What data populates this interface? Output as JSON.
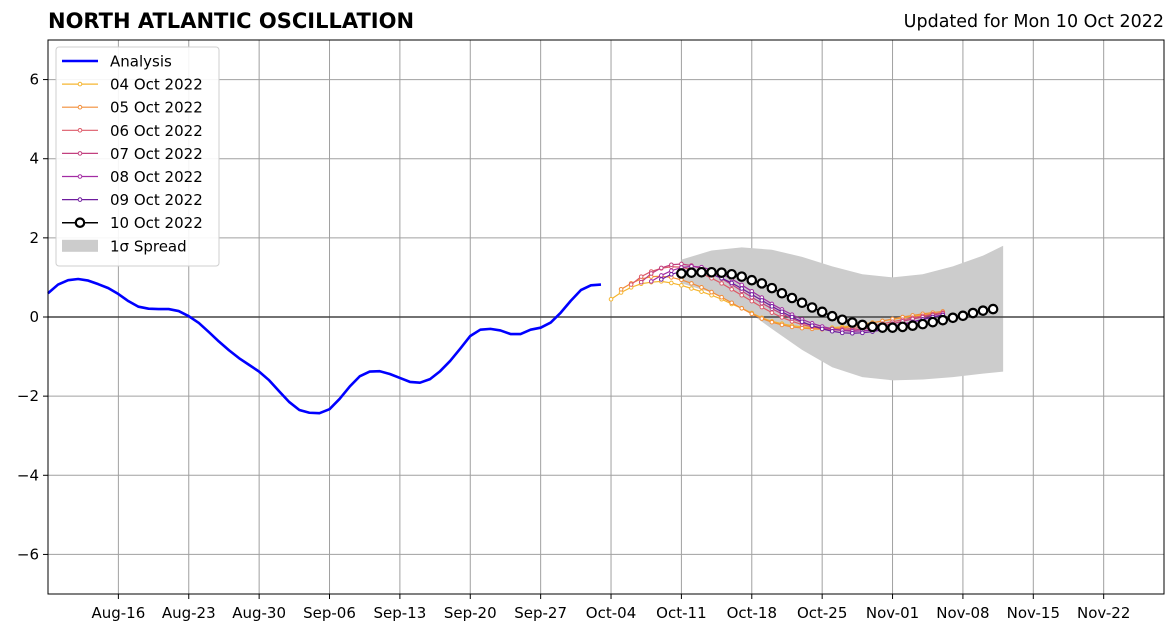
{
  "header": {
    "title": "NORTH ATLANTIC OSCILLATION",
    "subtitle": "Updated for Mon 10 Oct 2022"
  },
  "chart_data": {
    "type": "line",
    "title": "NORTH ATLANTIC OSCILLATION",
    "subtitle": "Updated for Mon 10 Oct 2022",
    "xlabel": "",
    "ylabel": "",
    "ylim": [
      -7,
      7
    ],
    "yticks": [
      -6,
      -4,
      -2,
      0,
      2,
      4,
      6
    ],
    "ytick_labels": [
      "−6",
      "−4",
      "−2",
      "0",
      "2",
      "4",
      "6"
    ],
    "xlim": [
      "2022-08-09",
      "2022-11-28"
    ],
    "xticks": [
      "2022-08-16",
      "2022-08-23",
      "2022-08-30",
      "2022-09-06",
      "2022-09-13",
      "2022-09-20",
      "2022-09-27",
      "2022-10-04",
      "2022-10-11",
      "2022-10-18",
      "2022-10-25",
      "2022-11-01",
      "2022-11-08",
      "2022-11-15",
      "2022-11-22"
    ],
    "xtick_labels": [
      "Aug-16",
      "Aug-23",
      "Aug-30",
      "Sep-06",
      "Sep-13",
      "Sep-20",
      "Sep-27",
      "Oct-04",
      "Oct-11",
      "Oct-18",
      "Oct-25",
      "Nov-01",
      "Nov-08",
      "Nov-15",
      "Nov-22"
    ],
    "grid": true,
    "legend_position": "top-left",
    "legend": [
      "Analysis",
      "04 Oct 2022",
      "05 Oct 2022",
      "06 Oct 2022",
      "07 Oct 2022",
      "08 Oct 2022",
      "09 Oct 2022",
      "10 Oct 2022",
      "1σ Spread"
    ],
    "analysis": {
      "name": "Analysis",
      "color": "#0000ff",
      "start": "2022-08-09",
      "values": [
        0.6,
        0.82,
        0.93,
        0.96,
        0.92,
        0.83,
        0.73,
        0.58,
        0.4,
        0.26,
        0.21,
        0.2,
        0.2,
        0.15,
        0.02,
        -0.15,
        -0.38,
        -0.62,
        -0.84,
        -1.04,
        -1.21,
        -1.38,
        -1.6,
        -1.88,
        -2.15,
        -2.35,
        -2.42,
        -2.43,
        -2.33,
        -2.07,
        -1.76,
        -1.5,
        -1.38,
        -1.37,
        -1.44,
        -1.54,
        -1.64,
        -1.66,
        -1.57,
        -1.37,
        -1.11,
        -0.8,
        -0.48,
        -0.32,
        -0.3,
        -0.34,
        -0.43,
        -0.43,
        -0.32,
        -0.27,
        -0.14,
        0.11,
        0.41,
        0.68,
        0.8,
        0.82
      ]
    },
    "forecasts": [
      {
        "name": "04 Oct 2022",
        "color": "#f5b530",
        "start": "2022-10-04",
        "values": [
          0.45,
          0.62,
          0.75,
          0.84,
          0.88,
          0.9,
          0.86,
          0.8,
          0.72,
          0.64,
          0.55,
          0.45,
          0.33,
          0.22,
          0.1,
          -0.02,
          -0.11,
          -0.17,
          -0.22,
          -0.25,
          -0.27,
          -0.28,
          -0.27,
          -0.25,
          -0.22,
          -0.18,
          -0.14,
          -0.1,
          -0.06,
          -0.02,
          0.02,
          0.05,
          0.08,
          0.1
        ]
      },
      {
        "name": "05 Oct 2022",
        "color": "#f28d38",
        "start": "2022-10-05",
        "values": [
          0.7,
          0.85,
          0.96,
          1.02,
          1.03,
          1.0,
          0.94,
          0.85,
          0.75,
          0.63,
          0.5,
          0.36,
          0.22,
          0.08,
          -0.04,
          -0.13,
          -0.2,
          -0.25,
          -0.28,
          -0.3,
          -0.31,
          -0.3,
          -0.28,
          -0.24,
          -0.2,
          -0.15,
          -0.1,
          -0.05,
          0.0,
          0.04,
          0.08,
          0.11,
          0.14
        ]
      },
      {
        "name": "06 Oct 2022",
        "color": "#dd5a68",
        "start": "2022-10-06",
        "values": [
          0.82,
          1.02,
          1.15,
          1.23,
          1.27,
          1.26,
          1.2,
          1.1,
          0.98,
          0.85,
          0.7,
          0.55,
          0.4,
          0.25,
          0.11,
          -0.01,
          -0.11,
          -0.19,
          -0.25,
          -0.29,
          -0.31,
          -0.31,
          -0.29,
          -0.26,
          -0.22,
          -0.17,
          -0.12,
          -0.07,
          -0.02,
          0.03,
          0.07,
          0.11
        ]
      },
      {
        "name": "07 Oct 2022",
        "color": "#c2407f",
        "start": "2022-10-07",
        "values": [
          0.88,
          1.1,
          1.24,
          1.32,
          1.34,
          1.3,
          1.22,
          1.11,
          0.97,
          0.82,
          0.66,
          0.5,
          0.35,
          0.21,
          0.08,
          -0.04,
          -0.14,
          -0.22,
          -0.28,
          -0.32,
          -0.34,
          -0.33,
          -0.31,
          -0.27,
          -0.22,
          -0.17,
          -0.11,
          -0.05,
          0.0,
          0.05,
          0.09
        ]
      },
      {
        "name": "08 Oct 2022",
        "color": "#a22ca3",
        "start": "2022-10-08",
        "values": [
          0.9,
          1.05,
          1.17,
          1.25,
          1.28,
          1.26,
          1.19,
          1.09,
          0.96,
          0.81,
          0.65,
          0.49,
          0.33,
          0.19,
          0.06,
          -0.06,
          -0.16,
          -0.24,
          -0.3,
          -0.34,
          -0.36,
          -0.35,
          -0.33,
          -0.29,
          -0.24,
          -0.18,
          -0.12,
          -0.06,
          0.0,
          0.05
        ]
      },
      {
        "name": "09 Oct 2022",
        "color": "#6e1c9e",
        "start": "2022-10-09",
        "values": [
          0.95,
          1.08,
          1.15,
          1.17,
          1.15,
          1.08,
          0.98,
          0.86,
          0.72,
          0.57,
          0.42,
          0.27,
          0.13,
          0.0,
          -0.12,
          -0.22,
          -0.3,
          -0.36,
          -0.4,
          -0.41,
          -0.4,
          -0.37,
          -0.32,
          -0.26,
          -0.2,
          -0.13,
          -0.06,
          0.0,
          0.05
        ]
      },
      {
        "name": "10 Oct 2022",
        "color": "#000000",
        "start": "2022-10-11",
        "values": [
          1.1,
          1.12,
          1.13,
          1.13,
          1.12,
          1.08,
          1.02,
          0.93,
          0.85,
          0.73,
          0.6,
          0.48,
          0.36,
          0.24,
          0.13,
          0.02,
          -0.07,
          -0.14,
          -0.2,
          -0.25,
          -0.27,
          -0.27,
          -0.25,
          -0.22,
          -0.18,
          -0.13,
          -0.08,
          -0.02,
          0.03,
          0.1,
          0.16,
          0.2
        ]
      }
    ],
    "spread": {
      "name": "1σ Spread",
      "color": "#cccccc",
      "x": [
        "2022-10-11",
        "2022-10-14",
        "2022-10-17",
        "2022-10-20",
        "2022-10-23",
        "2022-10-26",
        "2022-10-29",
        "2022-11-01",
        "2022-11-04",
        "2022-11-07",
        "2022-11-10",
        "2022-11-12"
      ],
      "upper": [
        1.45,
        1.68,
        1.76,
        1.7,
        1.52,
        1.28,
        1.08,
        1.0,
        1.08,
        1.28,
        1.55,
        1.8
      ],
      "lower": [
        0.85,
        0.62,
        0.25,
        -0.3,
        -0.83,
        -1.27,
        -1.52,
        -1.6,
        -1.58,
        -1.52,
        -1.43,
        -1.38
      ]
    }
  }
}
